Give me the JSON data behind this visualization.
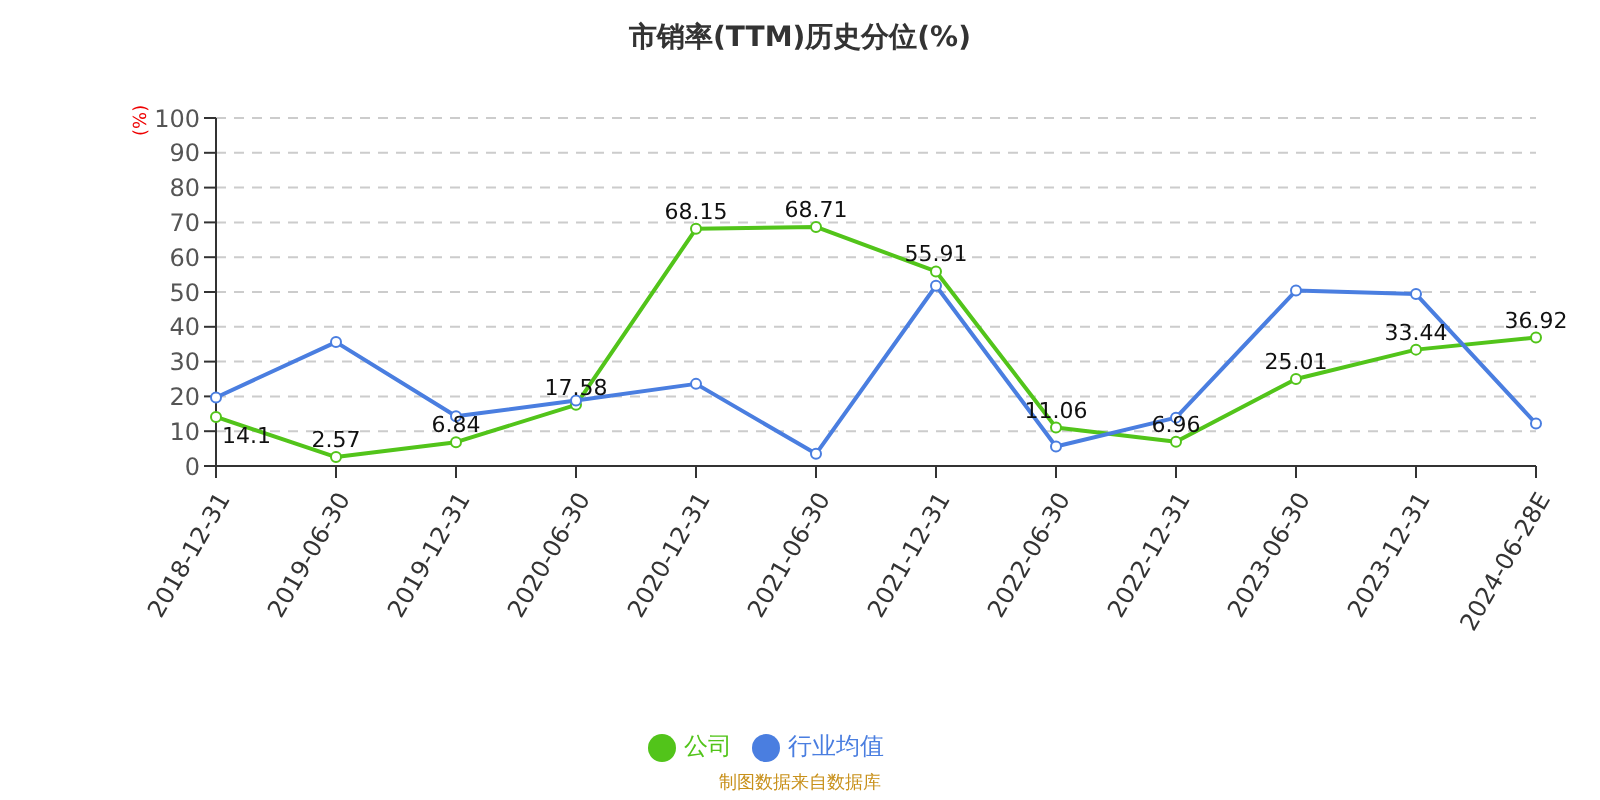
{
  "chart_data": {
    "type": "line",
    "title": "市销率(TTM)历史分位(%)",
    "ylabel": "(%)",
    "categories": [
      "2018-12-31",
      "2019-06-30",
      "2019-12-31",
      "2020-06-30",
      "2020-12-31",
      "2021-06-30",
      "2021-12-31",
      "2022-06-30",
      "2022-12-31",
      "2023-06-30",
      "2023-12-31",
      "2024-06-28E"
    ],
    "series": [
      {
        "name": "公司",
        "color": "#52c41a",
        "values": [
          14.1,
          2.57,
          6.84,
          17.58,
          68.15,
          68.71,
          55.91,
          11.06,
          6.96,
          25.01,
          33.44,
          36.92
        ],
        "value_labels": [
          "14.1",
          "2.57",
          "6.84",
          "17.58",
          "68.15",
          "68.71",
          "55.91",
          "11.06",
          "6.96",
          "25.01",
          "33.44",
          "36.92"
        ]
      },
      {
        "name": "行业均值",
        "color": "#4a7ee0",
        "values": [
          19.7,
          35.6,
          14.3,
          18.8,
          23.6,
          3.5,
          51.8,
          5.6,
          13.9,
          50.4,
          49.4,
          12.2
        ]
      }
    ],
    "ylim": [
      0,
      100
    ],
    "yticks": [
      0,
      10,
      20,
      30,
      40,
      50,
      60,
      70,
      80,
      90,
      100
    ],
    "grid": "y",
    "legend": "bottom",
    "marker": "circle",
    "line_style": "solid",
    "annotations": [
      "制图数据来自数据库"
    ]
  }
}
